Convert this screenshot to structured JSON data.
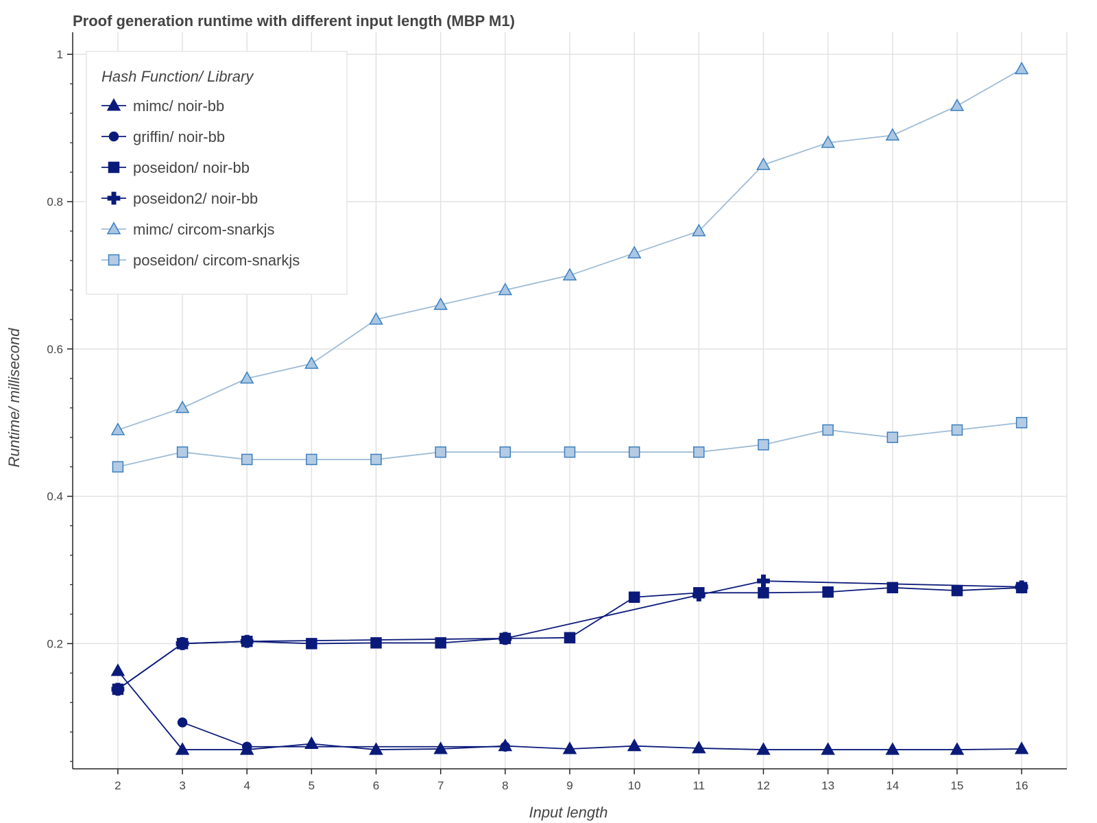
{
  "chart_data": {
    "type": "line",
    "title": "Proof generation runtime with different input length (MBP M1)",
    "xlabel": "Input length",
    "ylabel": "Runtime/ millisecond",
    "x": [
      2,
      3,
      4,
      5,
      6,
      7,
      8,
      9,
      10,
      11,
      12,
      13,
      14,
      15,
      16
    ],
    "xlim": [
      1.3,
      16.7
    ],
    "ylim": [
      0.03,
      1.03
    ],
    "y_ticks": [
      0.2,
      0.4,
      0.6,
      0.8,
      1
    ],
    "y_tick_labels": [
      "0.2",
      "0.4",
      "0.6",
      "0.8",
      "1"
    ],
    "y_minor_step": 0.04,
    "grid": true,
    "legend": {
      "title": "Hash Function/ Library",
      "placement": "top-left"
    },
    "series": [
      {
        "name": "mimc/ noir-bb",
        "marker": "triangle",
        "line_color": "#0a1a7a",
        "fill_color": "#0a1a7a",
        "stroke_color": "#0a1a7a",
        "points": [
          [
            2,
            0.163
          ],
          [
            3,
            0.056
          ],
          [
            4,
            0.056
          ],
          [
            5,
            0.064
          ],
          [
            6,
            0.056
          ],
          [
            7,
            0.057
          ],
          [
            8,
            0.061
          ],
          [
            9,
            0.057
          ],
          [
            10,
            0.061
          ],
          [
            11,
            0.058
          ],
          [
            12,
            0.056
          ],
          [
            13,
            0.056
          ],
          [
            14,
            0.056
          ],
          [
            15,
            0.056
          ],
          [
            16,
            0.057
          ]
        ]
      },
      {
        "name": "griffin/ noir-bb",
        "marker": "circle",
        "line_color": "#0a1a7a",
        "fill_color": "#0a1a7a",
        "stroke_color": "#0a1a7a",
        "points": [
          [
            3,
            0.093
          ],
          [
            4,
            0.06
          ],
          [
            8,
            0.06
          ]
        ]
      },
      {
        "name": "poseidon/ noir-bb",
        "marker": "square",
        "line_color": "#0a1a7a",
        "fill_color": "#0a1a7a",
        "stroke_color": "#0a1a7a",
        "points": [
          [
            2,
            0.138
          ],
          [
            3,
            0.2
          ],
          [
            4,
            0.203
          ],
          [
            5,
            0.2
          ],
          [
            6,
            0.201
          ],
          [
            7,
            0.201
          ],
          [
            8,
            0.207
          ],
          [
            9,
            0.208
          ],
          [
            10,
            0.263
          ],
          [
            11,
            0.269
          ],
          [
            12,
            0.269
          ],
          [
            13,
            0.27
          ],
          [
            14,
            0.276
          ],
          [
            15,
            0.272
          ],
          [
            16,
            0.276
          ]
        ]
      },
      {
        "name": "poseidon2/ noir-bb",
        "marker": "cross",
        "line_color": "#0a1a7a",
        "fill_color": "#0a1a7a",
        "stroke_color": "#0a1a7a",
        "points": [
          [
            2,
            0.138
          ],
          [
            3,
            0.2
          ],
          [
            4,
            0.203
          ],
          [
            8,
            0.207
          ],
          [
            11,
            0.266
          ],
          [
            12,
            0.285
          ],
          [
            16,
            0.277
          ]
        ]
      },
      {
        "name": "mimc/ circom-snarkjs",
        "marker": "triangle",
        "line_color": "#9fbcd6",
        "fill_color": "#a9c6e2",
        "stroke_color": "#3a7fc0",
        "points": [
          [
            2,
            0.49
          ],
          [
            3,
            0.52
          ],
          [
            4,
            0.56
          ],
          [
            5,
            0.58
          ],
          [
            6,
            0.64
          ],
          [
            7,
            0.66
          ],
          [
            8,
            0.68
          ],
          [
            9,
            0.7
          ],
          [
            10,
            0.73
          ],
          [
            11,
            0.76
          ],
          [
            12,
            0.85
          ],
          [
            13,
            0.88
          ],
          [
            14,
            0.89
          ],
          [
            15,
            0.93
          ],
          [
            16,
            0.98
          ]
        ]
      },
      {
        "name": "poseidon/ circom-snarkjs",
        "marker": "square",
        "line_color": "#9fbcd6",
        "fill_color": "#b4cbe3",
        "stroke_color": "#3a7fc0",
        "points": [
          [
            2,
            0.44
          ],
          [
            3,
            0.46
          ],
          [
            4,
            0.45
          ],
          [
            5,
            0.45
          ],
          [
            6,
            0.45
          ],
          [
            7,
            0.46
          ],
          [
            8,
            0.46
          ],
          [
            9,
            0.46
          ],
          [
            10,
            0.46
          ],
          [
            11,
            0.46
          ],
          [
            12,
            0.47
          ],
          [
            13,
            0.49
          ],
          [
            14,
            0.48
          ],
          [
            15,
            0.49
          ],
          [
            16,
            0.5
          ]
        ]
      }
    ]
  }
}
